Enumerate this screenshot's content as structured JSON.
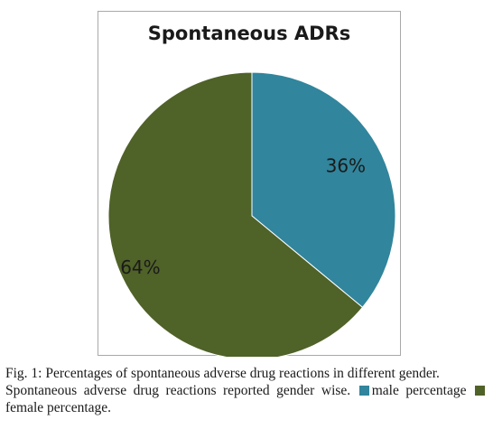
{
  "chart_data": {
    "type": "pie",
    "title": "Spontaneous ADRs",
    "slices": [
      {
        "label": "male percentage",
        "value": 36,
        "display": "36%",
        "color": "#31859c"
      },
      {
        "label": "female percentage",
        "value": 64,
        "display": "64%",
        "color": "#4f6228"
      }
    ]
  },
  "caption": {
    "line1": "Fig. 1: Percentages of spontaneous adverse drug reactions in different gender.",
    "line2": "Spontaneous adverse drug reactions reported gender wise.",
    "legend_male": "male percentage",
    "legend_female": "female percentage."
  }
}
